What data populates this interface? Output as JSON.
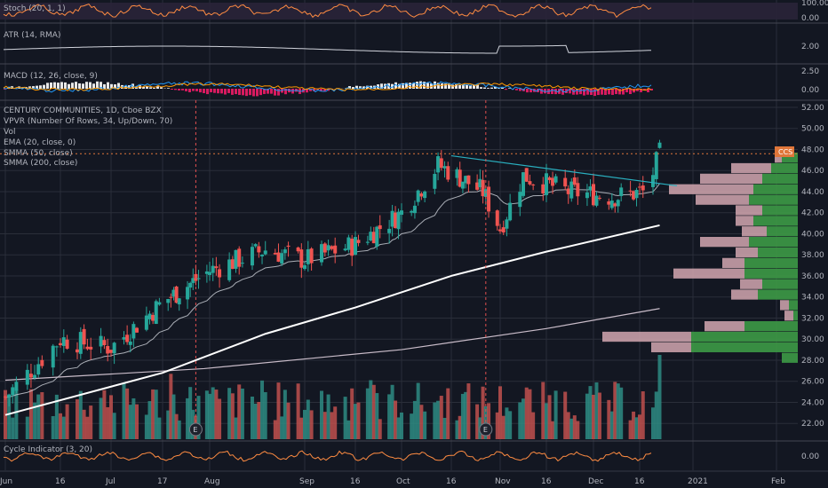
{
  "chart_data": {
    "type": "candlestick",
    "title": "CENTURY COMMUNITIES, 1D, Cboe BZX",
    "ticker_tag": "CCS",
    "last_price": 47.6,
    "indicators": {
      "main": [
        "VPVR (Number Of Rows, 34, Up/Down, 70)",
        "Vol",
        "EMA (20, close, 0)",
        "SMMA (50, close)",
        "SMMA (200, close)"
      ],
      "stoch": {
        "label": "Stoch (20, 1, 1)",
        "ticks": [
          "100.00",
          "0.00"
        ]
      },
      "atr": {
        "label": "ATR (14, RMA)",
        "ticks": [
          "2.00"
        ]
      },
      "macd": {
        "label": "MACD (12, 26, close, 9)",
        "ticks": [
          "2.50",
          "0.00"
        ]
      },
      "cycle": {
        "label": "Cycle Indicator (3, 20)",
        "ticks": [
          "0.00"
        ]
      }
    },
    "x_ticks": [
      "Jun",
      "16",
      "Jul",
      "17",
      "Aug",
      "Sep",
      "16",
      "Oct",
      "16",
      "Nov",
      "16",
      "Dec",
      "16",
      "2021",
      "Feb"
    ],
    "y_ticks": [
      "52.00",
      "50.00",
      "48.00",
      "46.00",
      "44.00",
      "42.00",
      "40.00",
      "38.00",
      "36.00",
      "34.00",
      "32.00",
      "30.00",
      "28.00",
      "26.00",
      "24.00",
      "22.00"
    ],
    "ylim": [
      20.5,
      52.5
    ],
    "colors": {
      "up": "#26a69a",
      "down": "#ef5350",
      "vol_up": "#2e8b82",
      "vol_down": "#c0504d",
      "ema": "#d1d4dc",
      "smma50": "#ffffff",
      "smma200": "#c9bcc9",
      "trendline": "#2ab0c0",
      "bg": "#131722",
      "grid": "#2a2e39"
    },
    "earnings_markers": [
      {
        "label": "E",
        "date": "Jul 29"
      },
      {
        "label": "E",
        "date": "Oct 28"
      }
    ],
    "trendline": {
      "start": {
        "date": "Oct 16",
        "price": 47.4
      },
      "end": {
        "date": "Dec 22",
        "price": 44.8
      }
    },
    "price_keypoints": [
      {
        "date": "Jun 1",
        "close": 24.5
      },
      {
        "date": "Jun 16",
        "close": 30.0
      },
      {
        "date": "Jul 1",
        "close": 29.2
      },
      {
        "date": "Jul 17",
        "close": 33.5
      },
      {
        "date": "Aug 3",
        "close": 36.5
      },
      {
        "date": "Aug 20",
        "close": 38.5
      },
      {
        "date": "Sep 1",
        "close": 37.5
      },
      {
        "date": "Sep 16",
        "close": 39.0
      },
      {
        "date": "Oct 1",
        "close": 42.0
      },
      {
        "date": "Oct 12",
        "close": 46.5
      },
      {
        "date": "Oct 27",
        "close": 44.0
      },
      {
        "date": "Nov 2",
        "close": 40.5
      },
      {
        "date": "Nov 9",
        "close": 45.5
      },
      {
        "date": "Nov 23",
        "close": 44.0
      },
      {
        "date": "Dec 7",
        "close": 43.5
      },
      {
        "date": "Dec 18",
        "close": 44.0
      },
      {
        "date": "Dec 22",
        "close": 47.6
      }
    ],
    "smma50_keypoints": [
      {
        "date": "Jun 1",
        "value": 22.8
      },
      {
        "date": "Jul 17",
        "value": 26.8
      },
      {
        "date": "Aug 20",
        "value": 30.5
      },
      {
        "date": "Sep 16",
        "value": 33.0
      },
      {
        "date": "Oct 16",
        "value": 36.0
      },
      {
        "date": "Nov 16",
        "value": 38.3
      },
      {
        "date": "Dec 22",
        "value": 40.8
      }
    ],
    "smma200_keypoints": [
      {
        "date": "Jun 1",
        "value": 26.1
      },
      {
        "date": "Aug 1",
        "value": 27.2
      },
      {
        "date": "Oct 1",
        "value": 29.0
      },
      {
        "date": "Nov 16",
        "value": 31.0
      },
      {
        "date": "Dec 22",
        "value": 32.9
      }
    ],
    "vpvr_rows": [
      {
        "price": 47.2,
        "up": 18,
        "down": 8
      },
      {
        "price": 46.2,
        "up": 30,
        "down": 45
      },
      {
        "price": 45.2,
        "up": 40,
        "down": 70
      },
      {
        "price": 44.2,
        "up": 50,
        "down": 95
      },
      {
        "price": 43.2,
        "up": 55,
        "down": 60
      },
      {
        "price": 42.2,
        "up": 40,
        "down": 30
      },
      {
        "price": 41.2,
        "up": 50,
        "down": 20
      },
      {
        "price": 40.2,
        "up": 35,
        "down": 28
      },
      {
        "price": 39.2,
        "up": 55,
        "down": 55
      },
      {
        "price": 38.2,
        "up": 45,
        "down": 25
      },
      {
        "price": 37.2,
        "up": 60,
        "down": 25
      },
      {
        "price": 36.2,
        "up": 60,
        "down": 80
      },
      {
        "price": 35.2,
        "up": 40,
        "down": 25
      },
      {
        "price": 34.2,
        "up": 45,
        "down": 30
      },
      {
        "price": 33.2,
        "up": 10,
        "down": 10
      },
      {
        "price": 32.2,
        "up": 5,
        "down": 10
      },
      {
        "price": 31.2,
        "up": 60,
        "down": 45
      },
      {
        "price": 30.2,
        "up": 120,
        "down": 100
      },
      {
        "price": 29.2,
        "up": 120,
        "down": 45
      },
      {
        "price": 28.2,
        "up": 18,
        "down": 0
      }
    ]
  }
}
